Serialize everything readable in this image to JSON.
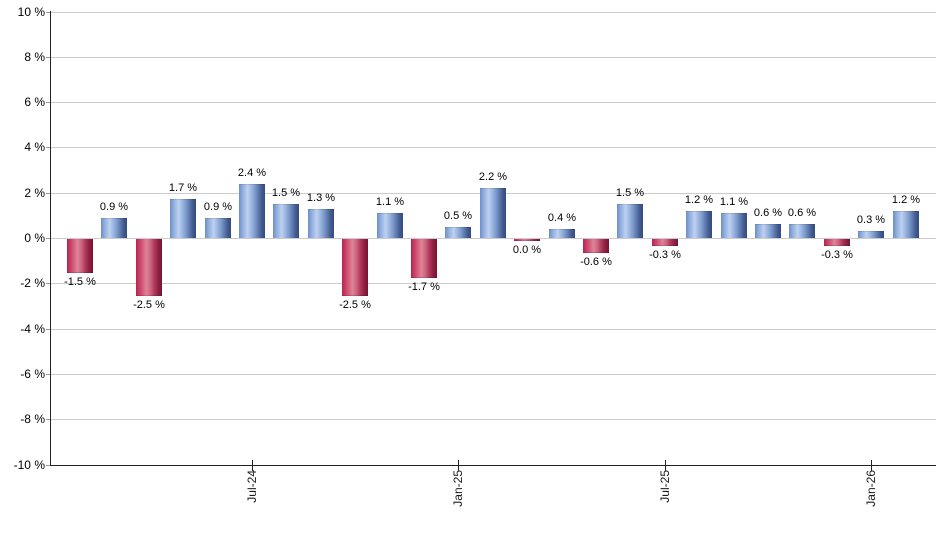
{
  "chart_data": {
    "type": "bar",
    "title": "",
    "xlabel": "",
    "ylabel": "",
    "unit": "%",
    "ylim": [
      -10,
      10
    ],
    "y_tick_step": 2,
    "grid": true,
    "legend": null,
    "y_ticks": [
      {
        "value": 10,
        "label": "10 %"
      },
      {
        "value": 8,
        "label": "8 %"
      },
      {
        "value": 6,
        "label": "6 %"
      },
      {
        "value": 4,
        "label": "4 %"
      },
      {
        "value": 2,
        "label": "2 %"
      },
      {
        "value": 0,
        "label": "0 %"
      },
      {
        "value": -2,
        "label": "-2 %"
      },
      {
        "value": -4,
        "label": "-4 %"
      },
      {
        "value": -6,
        "label": "-6 %"
      },
      {
        "value": -8,
        "label": "-8 %"
      },
      {
        "value": -10,
        "label": "-10 %"
      }
    ],
    "bars": [
      {
        "value": -1.5,
        "label": "-1.5 %"
      },
      {
        "value": 0.9,
        "label": "0.9 %"
      },
      {
        "value": -2.5,
        "label": "-2.5 %"
      },
      {
        "value": 1.7,
        "label": "1.7 %"
      },
      {
        "value": 0.9,
        "label": "0.9 %"
      },
      {
        "value": 2.4,
        "label": "2.4 %"
      },
      {
        "value": 1.5,
        "label": "1.5 %"
      },
      {
        "value": 1.3,
        "label": "1.3 %"
      },
      {
        "value": -2.5,
        "label": "-2.5 %"
      },
      {
        "value": 1.1,
        "label": "1.1 %"
      },
      {
        "value": -1.7,
        "label": "-1.7 %"
      },
      {
        "value": 0.5,
        "label": "0.5 %"
      },
      {
        "value": 2.2,
        "label": "2.2 %"
      },
      {
        "value": 0.0,
        "label": "0.0 %"
      },
      {
        "value": 0.4,
        "label": "0.4 %"
      },
      {
        "value": -0.6,
        "label": "-0.6 %"
      },
      {
        "value": 1.5,
        "label": "1.5 %"
      },
      {
        "value": -0.3,
        "label": "-0.3 %"
      },
      {
        "value": 1.2,
        "label": "1.2 %"
      },
      {
        "value": 1.1,
        "label": "1.1 %"
      },
      {
        "value": 0.6,
        "label": "0.6 %"
      },
      {
        "value": 0.6,
        "label": "0.6 %"
      },
      {
        "value": -0.3,
        "label": "-0.3 %"
      },
      {
        "value": 0.3,
        "label": "0.3 %"
      },
      {
        "value": 1.2,
        "label": "1.2 %"
      }
    ],
    "x_ticks": [
      {
        "label": "Jul-24",
        "bar_index": 5
      },
      {
        "label": "Jan-25",
        "bar_index": 11
      },
      {
        "label": "Jul-25",
        "bar_index": 17
      },
      {
        "label": "Jan-26",
        "bar_index": 23
      }
    ],
    "colors": {
      "positive_bar_light": "#bdd1f0",
      "positive_bar_dark": "#334b7e",
      "negative_bar_light": "#de8398",
      "negative_bar_dark": "#731531",
      "gridline": "#cccccc",
      "axis": "#222222",
      "label_text": "#000000"
    }
  }
}
